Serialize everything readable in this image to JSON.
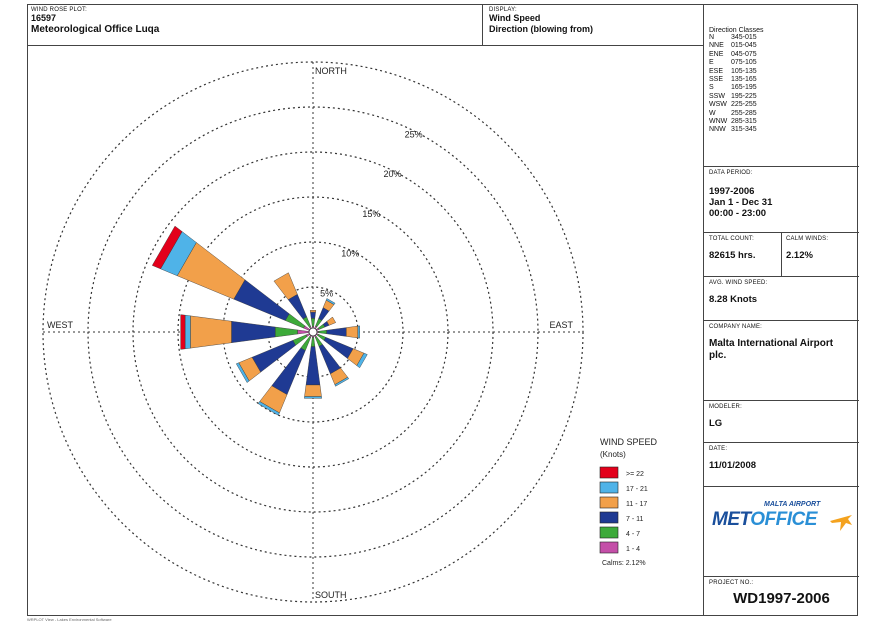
{
  "header": {
    "plot_label": "WIND ROSE PLOT:",
    "station_id": "16597",
    "station_name": "Meteorological Office Luqa",
    "display_label": "DISPLAY:",
    "display_value": "Wind Speed",
    "display_sub": "Direction (blowing from)"
  },
  "direction_classes": {
    "title": "Direction Classes",
    "rows": [
      {
        "dir": "N",
        "range": "345-015"
      },
      {
        "dir": "NNE",
        "range": "015-045"
      },
      {
        "dir": "ENE",
        "range": "045-075"
      },
      {
        "dir": "E",
        "range": "075-105"
      },
      {
        "dir": "ESE",
        "range": "105-135"
      },
      {
        "dir": "SSE",
        "range": "135-165"
      },
      {
        "dir": "S",
        "range": "165-195"
      },
      {
        "dir": "SSW",
        "range": "195-225"
      },
      {
        "dir": "WSW",
        "range": "225-255"
      },
      {
        "dir": "W",
        "range": "255-285"
      },
      {
        "dir": "WNW",
        "range": "285-315"
      },
      {
        "dir": "NNW",
        "range": "315-345"
      }
    ]
  },
  "data_period": {
    "label": "DATA PERIOD:",
    "line1": "1997-2006",
    "line2": "Jan 1 - Dec 31",
    "line3": "00:00 - 23:00"
  },
  "total_count": {
    "label": "TOTAL COUNT:",
    "value": "82615 hrs."
  },
  "calm_winds": {
    "label": "CALM WINDS:",
    "value": "2.12%"
  },
  "avg_speed": {
    "label": "AVG. WIND SPEED:",
    "value": "8.28 Knots"
  },
  "company": {
    "label": "COMPANY NAME:",
    "line1": "Malta International Airport",
    "line2": "plc."
  },
  "modeler": {
    "label": "MODELER:",
    "value": "LG"
  },
  "date": {
    "label": "DATE:",
    "value": "11/01/2008"
  },
  "logo": {
    "top": "MALTA AIRPORT",
    "part1": "MET",
    "part2": "OFFICE"
  },
  "project": {
    "label": "PROJECT NO.:",
    "value": "WD1997-2006"
  },
  "footer": "WRPLOT View - Lakes Environmental Software",
  "chart_data": {
    "type": "windrose",
    "compass": {
      "north": "NORTH",
      "south": "SOUTH",
      "east": "EAST",
      "west": "WEST"
    },
    "rings": [
      5,
      10,
      15,
      20,
      25
    ],
    "ring_labels": [
      "5%",
      "10%",
      "15%",
      "20%",
      "25%"
    ],
    "ring_max": 30,
    "legend": {
      "title": "WIND SPEED",
      "units": "(Knots)",
      "calms": "Calms: 2.12%",
      "classes": [
        {
          "label": ">= 22",
          "color": "#e3001b"
        },
        {
          "label": "17 - 21",
          "color": "#4fb3e8"
        },
        {
          "label": "11 - 17",
          "color": "#f2a04a"
        },
        {
          "label": "7 - 11",
          "color": "#1f3a93"
        },
        {
          "label": "4 - 7",
          "color": "#3daa3a"
        },
        {
          "label": "1 - 4",
          "color": "#c44fa8"
        }
      ]
    },
    "directions": [
      "N",
      "NNE",
      "ENE",
      "E",
      "ESE",
      "SSE",
      "S",
      "SSW",
      "WSW",
      "W",
      "WNW",
      "NNW"
    ],
    "angles_deg": [
      0,
      30,
      60,
      90,
      120,
      150,
      180,
      210,
      240,
      270,
      300,
      330
    ],
    "series_order": [
      "1 - 4",
      "4 - 7",
      "7 - 11",
      "11 - 17",
      "17 - 21",
      ">= 22"
    ],
    "values_pct": [
      [
        0.3,
        0.9,
        0.7,
        0.2,
        0.0,
        0.0
      ],
      [
        0.4,
        0.9,
        1.3,
        0.9,
        0.2,
        0.0
      ],
      [
        0.4,
        0.7,
        0.5,
        0.8,
        0.0,
        0.0
      ],
      [
        0.3,
        0.9,
        2.2,
        1.3,
        0.2,
        0.0
      ],
      [
        0.3,
        0.9,
        3.3,
        1.3,
        0.4,
        0.0
      ],
      [
        0.3,
        1.1,
        3.3,
        1.3,
        0.2,
        0.0
      ],
      [
        0.3,
        1.0,
        4.3,
        1.3,
        0.2,
        0.0
      ],
      [
        0.3,
        1.6,
        5.3,
        2.2,
        0.3,
        0.0
      ],
      [
        0.5,
        1.6,
        4.9,
        1.6,
        0.3,
        0.0
      ],
      [
        1.4,
        2.5,
        4.9,
        4.6,
        0.6,
        0.5
      ],
      [
        0.8,
        2.2,
        6.2,
        6.8,
        2.0,
        1.0
      ],
      [
        0.3,
        1.2,
        2.7,
        2.6,
        0.0,
        0.0
      ]
    ]
  }
}
